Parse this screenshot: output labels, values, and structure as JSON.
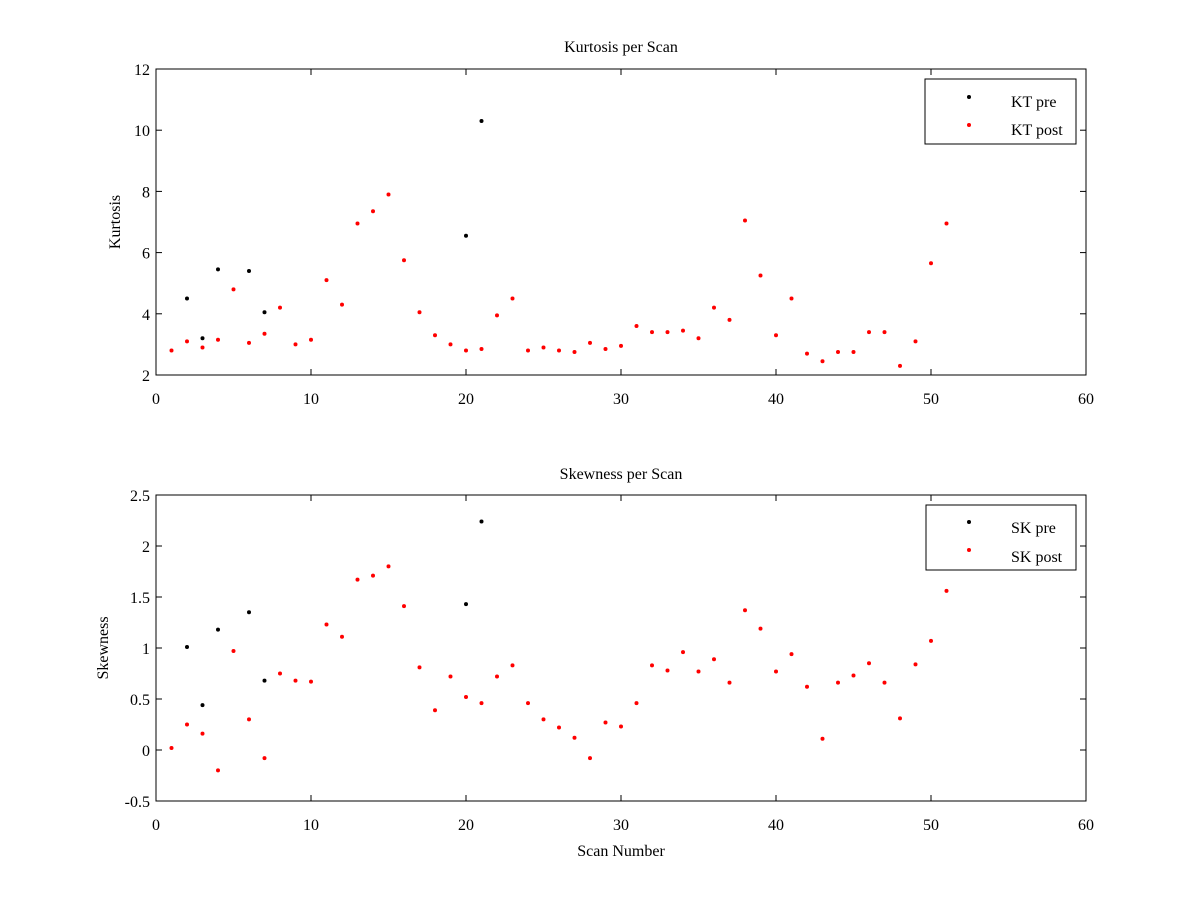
{
  "chart_data": [
    {
      "type": "scatter",
      "title": "Kurtosis per Scan",
      "xlabel": "",
      "ylabel": "Kurtosis",
      "xlim": [
        0,
        60
      ],
      "ylim": [
        2,
        12
      ],
      "xticks": [
        0,
        10,
        20,
        30,
        40,
        50,
        60
      ],
      "yticks": [
        2,
        4,
        6,
        8,
        10,
        12
      ],
      "grid": false,
      "legend_position": "top-right",
      "series": [
        {
          "name": "KT pre",
          "color": "#000000",
          "points": [
            [
              2,
              4.5
            ],
            [
              3,
              3.2
            ],
            [
              4,
              5.45
            ],
            [
              6,
              5.4
            ],
            [
              7,
              4.05
            ],
            [
              20,
              6.55
            ],
            [
              21,
              10.3
            ]
          ]
        },
        {
          "name": "KT post",
          "color": "#ff0000",
          "points": [
            [
              1,
              2.8
            ],
            [
              2,
              3.1
            ],
            [
              3,
              2.9
            ],
            [
              4,
              3.15
            ],
            [
              5,
              4.8
            ],
            [
              6,
              3.05
            ],
            [
              7,
              3.35
            ],
            [
              8,
              4.2
            ],
            [
              9,
              3.0
            ],
            [
              10,
              3.15
            ],
            [
              11,
              5.1
            ],
            [
              12,
              4.3
            ],
            [
              13,
              6.95
            ],
            [
              14,
              7.35
            ],
            [
              15,
              7.9
            ],
            [
              16,
              5.75
            ],
            [
              17,
              4.05
            ],
            [
              18,
              3.3
            ],
            [
              19,
              3.0
            ],
            [
              20,
              2.8
            ],
            [
              21,
              2.85
            ],
            [
              22,
              3.95
            ],
            [
              23,
              4.5
            ],
            [
              24,
              2.8
            ],
            [
              25,
              2.9
            ],
            [
              26,
              2.8
            ],
            [
              27,
              2.75
            ],
            [
              28,
              3.05
            ],
            [
              29,
              2.85
            ],
            [
              30,
              2.95
            ],
            [
              31,
              3.6
            ],
            [
              32,
              3.4
            ],
            [
              33,
              3.4
            ],
            [
              34,
              3.45
            ],
            [
              35,
              3.2
            ],
            [
              36,
              4.2
            ],
            [
              37,
              3.8
            ],
            [
              38,
              7.05
            ],
            [
              39,
              5.25
            ],
            [
              40,
              3.3
            ],
            [
              41,
              4.5
            ],
            [
              42,
              2.7
            ],
            [
              43,
              2.45
            ],
            [
              44,
              2.75
            ],
            [
              45,
              2.75
            ],
            [
              46,
              3.4
            ],
            [
              47,
              3.4
            ],
            [
              48,
              2.3
            ],
            [
              49,
              3.1
            ],
            [
              50,
              5.65
            ],
            [
              51,
              6.95
            ]
          ]
        }
      ]
    },
    {
      "type": "scatter",
      "title": "Skewness per Scan",
      "xlabel": "Scan Number",
      "ylabel": "Skewness",
      "xlim": [
        0,
        60
      ],
      "ylim": [
        -0.5,
        2.5
      ],
      "xticks": [
        0,
        10,
        20,
        30,
        40,
        50,
        60
      ],
      "yticks": [
        -0.5,
        0,
        0.5,
        1,
        1.5,
        2,
        2.5
      ],
      "grid": false,
      "legend_position": "top-right",
      "series": [
        {
          "name": "SK pre",
          "color": "#000000",
          "points": [
            [
              2,
              1.01
            ],
            [
              3,
              0.44
            ],
            [
              4,
              1.18
            ],
            [
              6,
              1.35
            ],
            [
              7,
              0.68
            ],
            [
              20,
              1.43
            ],
            [
              21,
              2.24
            ]
          ]
        },
        {
          "name": "SK post",
          "color": "#ff0000",
          "points": [
            [
              1,
              0.02
            ],
            [
              2,
              0.25
            ],
            [
              3,
              0.16
            ],
            [
              4,
              -0.2
            ],
            [
              5,
              0.97
            ],
            [
              6,
              0.3
            ],
            [
              7,
              -0.08
            ],
            [
              8,
              0.75
            ],
            [
              9,
              0.68
            ],
            [
              10,
              0.67
            ],
            [
              11,
              1.23
            ],
            [
              12,
              1.11
            ],
            [
              13,
              1.67
            ],
            [
              14,
              1.71
            ],
            [
              15,
              1.8
            ],
            [
              16,
              1.41
            ],
            [
              17,
              0.81
            ],
            [
              18,
              0.39
            ],
            [
              19,
              0.72
            ],
            [
              20,
              0.52
            ],
            [
              21,
              0.46
            ],
            [
              22,
              0.72
            ],
            [
              23,
              0.83
            ],
            [
              24,
              0.46
            ],
            [
              25,
              0.3
            ],
            [
              26,
              0.22
            ],
            [
              27,
              0.12
            ],
            [
              28,
              -0.08
            ],
            [
              29,
              0.27
            ],
            [
              30,
              0.23
            ],
            [
              31,
              0.46
            ],
            [
              32,
              0.83
            ],
            [
              33,
              0.78
            ],
            [
              34,
              0.96
            ],
            [
              35,
              0.77
            ],
            [
              36,
              0.89
            ],
            [
              37,
              0.66
            ],
            [
              38,
              1.37
            ],
            [
              39,
              1.19
            ],
            [
              40,
              0.77
            ],
            [
              41,
              0.94
            ],
            [
              42,
              0.62
            ],
            [
              43,
              0.11
            ],
            [
              44,
              0.66
            ],
            [
              45,
              0.73
            ],
            [
              46,
              0.85
            ],
            [
              47,
              0.66
            ],
            [
              48,
              0.31
            ],
            [
              49,
              0.84
            ],
            [
              50,
              1.07
            ],
            [
              51,
              1.56
            ]
          ]
        }
      ]
    }
  ]
}
